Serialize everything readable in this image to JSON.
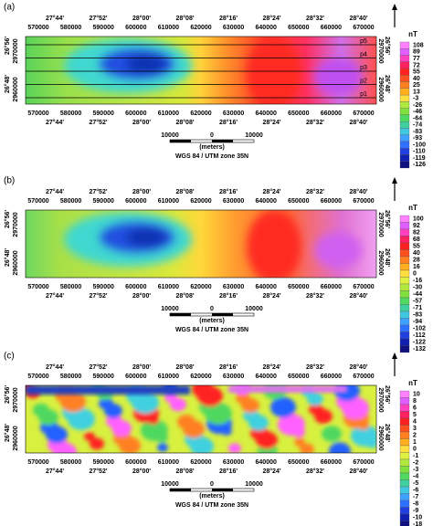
{
  "panels": [
    {
      "label": "(a)",
      "lon": [
        "27°44'",
        "27°52'",
        "28°00'",
        "28°08'",
        "28°16'",
        "28°24'",
        "28°32'",
        "28°40'"
      ],
      "utm_x": [
        "570000",
        "580000",
        "590000",
        "600000",
        "610000",
        "620000",
        "630000",
        "640000",
        "650000",
        "660000",
        "670000"
      ],
      "lat": [
        "26°56'",
        "26°48'"
      ],
      "utm_y": [
        "2970000",
        "2960000"
      ],
      "unit": "nT",
      "legend": [
        "108",
        "89",
        "77",
        "72",
        "55",
        "40",
        "25",
        "13",
        "-3",
        "-26",
        "-46",
        "-64",
        "-74",
        "-83",
        "-93",
        "-100",
        "-110",
        "-119",
        "-126"
      ],
      "profiles": [
        "p5",
        "p4",
        "p3",
        "p2",
        "p1"
      ],
      "scale": {
        "left": "10000",
        "mid": "0",
        "right": "10000",
        "units": "(meters)",
        "datum": "WGS 84 / UTM zone 35N"
      }
    },
    {
      "label": "(b)",
      "lon": [
        "27°44'",
        "27°52'",
        "28°00'",
        "28°08'",
        "28°16'",
        "28°24'",
        "28°32'",
        "28°40'"
      ],
      "utm_x": [
        "570000",
        "580000",
        "590000",
        "600000",
        "610000",
        "620000",
        "630000",
        "640000",
        "650000",
        "660000",
        "670000"
      ],
      "lat": [
        "26°56'",
        "26°48'"
      ],
      "utm_y": [
        "2970000",
        "2960000"
      ],
      "unit": "nT",
      "legend": [
        "100",
        "92",
        "82",
        "68",
        "55",
        "40",
        "28",
        "16",
        "0",
        "-16",
        "-30",
        "-44",
        "-57",
        "-71",
        "-83",
        "-94",
        "-102",
        "-112",
        "-122",
        "-132"
      ],
      "scale": {
        "left": "10000",
        "mid": "0",
        "right": "10000",
        "units": "(meters)",
        "datum": "WGS 84 / UTM zone 35N"
      }
    },
    {
      "label": "(c)",
      "lon": [
        "27°44'",
        "27°52'",
        "28°00'",
        "28°08'",
        "28°16'",
        "28°24'",
        "28°32'",
        "28°40'"
      ],
      "utm_x": [
        "570000",
        "580000",
        "590000",
        "600000",
        "610000",
        "620000",
        "630000",
        "640000",
        "650000",
        "660000",
        "670000"
      ],
      "lat": [
        "26°56'",
        "26°48'"
      ],
      "utm_y": [
        "2970000",
        "2960000"
      ],
      "unit": "nT",
      "legend": [
        "10",
        "8",
        "6",
        "5",
        "4",
        "3",
        "2",
        "1",
        "0",
        "-1",
        "-2",
        "-3",
        "-4",
        "-5",
        "-6",
        "-7",
        "-8",
        "-9",
        "-10",
        "-18"
      ],
      "scale": {
        "left": "10000",
        "mid": "0",
        "right": "10000",
        "units": "(meters)",
        "datum": "WGS 84 / UTM zone 35N"
      }
    }
  ]
}
